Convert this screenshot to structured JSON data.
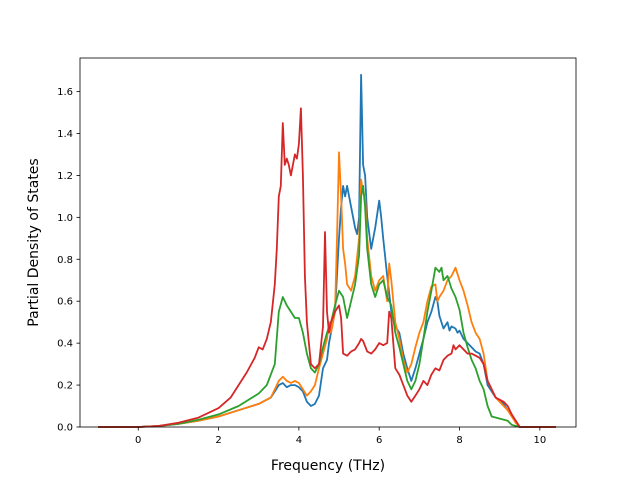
{
  "chart_data": {
    "type": "line",
    "title": "",
    "xlabel": "Frequency (THz)",
    "ylabel": "Partial Density of States",
    "xlim": [
      -1.45,
      10.9
    ],
    "ylim": [
      0.0,
      1.76
    ],
    "xticks": [
      0,
      2,
      4,
      6,
      8,
      10
    ],
    "yticks": [
      0.0,
      0.2,
      0.4,
      0.6,
      0.8,
      1.0,
      1.2,
      1.4,
      1.6
    ],
    "xtick_labels": [
      "0",
      "2",
      "4",
      "6",
      "8",
      "10"
    ],
    "ytick_labels": [
      "0.0",
      "0.2",
      "0.4",
      "0.6",
      "0.8",
      "1.0",
      "1.2",
      "1.4",
      "1.6"
    ],
    "grid": false,
    "legend": "none",
    "series": [
      {
        "color": "#1f77b4",
        "points": [
          [
            -1.0,
            0.0
          ],
          [
            0.0,
            0.0
          ],
          [
            0.5,
            0.005
          ],
          [
            1.0,
            0.015
          ],
          [
            1.5,
            0.03
          ],
          [
            2.0,
            0.05
          ],
          [
            2.5,
            0.08
          ],
          [
            3.0,
            0.11
          ],
          [
            3.3,
            0.14
          ],
          [
            3.5,
            0.2
          ],
          [
            3.6,
            0.21
          ],
          [
            3.7,
            0.19
          ],
          [
            3.8,
            0.2
          ],
          [
            3.9,
            0.2
          ],
          [
            4.0,
            0.19
          ],
          [
            4.1,
            0.17
          ],
          [
            4.2,
            0.12
          ],
          [
            4.3,
            0.1
          ],
          [
            4.4,
            0.11
          ],
          [
            4.5,
            0.15
          ],
          [
            4.6,
            0.28
          ],
          [
            4.7,
            0.32
          ],
          [
            4.75,
            0.4
          ],
          [
            4.8,
            0.45
          ],
          [
            4.9,
            0.55
          ],
          [
            5.0,
            0.9
          ],
          [
            5.05,
            1.05
          ],
          [
            5.1,
            1.15
          ],
          [
            5.15,
            1.1
          ],
          [
            5.2,
            1.15
          ],
          [
            5.3,
            1.05
          ],
          [
            5.4,
            0.95
          ],
          [
            5.45,
            0.92
          ],
          [
            5.5,
            1.0
          ],
          [
            5.55,
            1.68
          ],
          [
            5.6,
            1.25
          ],
          [
            5.65,
            1.2
          ],
          [
            5.7,
            1.0
          ],
          [
            5.8,
            0.85
          ],
          [
            5.9,
            0.95
          ],
          [
            6.0,
            1.08
          ],
          [
            6.05,
            1.0
          ],
          [
            6.1,
            0.9
          ],
          [
            6.2,
            0.72
          ],
          [
            6.3,
            0.55
          ],
          [
            6.4,
            0.48
          ],
          [
            6.5,
            0.45
          ],
          [
            6.6,
            0.35
          ],
          [
            6.7,
            0.28
          ],
          [
            6.8,
            0.22
          ],
          [
            6.9,
            0.28
          ],
          [
            7.0,
            0.35
          ],
          [
            7.1,
            0.42
          ],
          [
            7.2,
            0.5
          ],
          [
            7.3,
            0.55
          ],
          [
            7.4,
            0.62
          ],
          [
            7.45,
            0.6
          ],
          [
            7.5,
            0.53
          ],
          [
            7.6,
            0.47
          ],
          [
            7.7,
            0.5
          ],
          [
            7.75,
            0.46
          ],
          [
            7.8,
            0.48
          ],
          [
            7.9,
            0.47
          ],
          [
            7.95,
            0.45
          ],
          [
            8.0,
            0.46
          ],
          [
            8.1,
            0.42
          ],
          [
            8.2,
            0.4
          ],
          [
            8.3,
            0.38
          ],
          [
            8.4,
            0.36
          ],
          [
            8.5,
            0.35
          ],
          [
            8.6,
            0.3
          ],
          [
            8.7,
            0.2
          ],
          [
            8.9,
            0.14
          ],
          [
            9.1,
            0.11
          ],
          [
            9.2,
            0.08
          ],
          [
            9.3,
            0.06
          ],
          [
            9.4,
            0.02
          ],
          [
            9.5,
            0.0
          ],
          [
            10.4,
            0.0
          ]
        ]
      },
      {
        "color": "#ff7f0e",
        "points": [
          [
            -1.0,
            0.0
          ],
          [
            0.0,
            0.0
          ],
          [
            0.5,
            0.005
          ],
          [
            1.0,
            0.015
          ],
          [
            1.5,
            0.03
          ],
          [
            2.0,
            0.05
          ],
          [
            2.5,
            0.08
          ],
          [
            3.0,
            0.11
          ],
          [
            3.3,
            0.14
          ],
          [
            3.5,
            0.22
          ],
          [
            3.6,
            0.24
          ],
          [
            3.7,
            0.22
          ],
          [
            3.8,
            0.21
          ],
          [
            3.9,
            0.22
          ],
          [
            4.0,
            0.21
          ],
          [
            4.1,
            0.18
          ],
          [
            4.2,
            0.15
          ],
          [
            4.3,
            0.17
          ],
          [
            4.4,
            0.2
          ],
          [
            4.5,
            0.28
          ],
          [
            4.6,
            0.35
          ],
          [
            4.7,
            0.42
          ],
          [
            4.75,
            0.5
          ],
          [
            4.8,
            0.45
          ],
          [
            4.9,
            0.55
          ],
          [
            4.95,
            0.9
          ],
          [
            5.0,
            1.31
          ],
          [
            5.05,
            1.1
          ],
          [
            5.1,
            0.85
          ],
          [
            5.15,
            0.78
          ],
          [
            5.2,
            0.68
          ],
          [
            5.3,
            0.65
          ],
          [
            5.4,
            0.72
          ],
          [
            5.5,
            0.9
          ],
          [
            5.55,
            1.18
          ],
          [
            5.6,
            1.12
          ],
          [
            5.65,
            1.1
          ],
          [
            5.7,
            0.9
          ],
          [
            5.8,
            0.72
          ],
          [
            5.9,
            0.65
          ],
          [
            6.0,
            0.7
          ],
          [
            6.1,
            0.72
          ],
          [
            6.2,
            0.6
          ],
          [
            6.25,
            0.78
          ],
          [
            6.3,
            0.7
          ],
          [
            6.4,
            0.5
          ],
          [
            6.5,
            0.42
          ],
          [
            6.6,
            0.32
          ],
          [
            6.7,
            0.26
          ],
          [
            6.8,
            0.3
          ],
          [
            6.9,
            0.38
          ],
          [
            7.0,
            0.45
          ],
          [
            7.1,
            0.5
          ],
          [
            7.2,
            0.6
          ],
          [
            7.3,
            0.67
          ],
          [
            7.4,
            0.68
          ],
          [
            7.45,
            0.6
          ],
          [
            7.5,
            0.62
          ],
          [
            7.6,
            0.65
          ],
          [
            7.7,
            0.7
          ],
          [
            7.8,
            0.72
          ],
          [
            7.9,
            0.76
          ],
          [
            8.0,
            0.7
          ],
          [
            8.1,
            0.65
          ],
          [
            8.2,
            0.58
          ],
          [
            8.3,
            0.5
          ],
          [
            8.4,
            0.45
          ],
          [
            8.5,
            0.42
          ],
          [
            8.6,
            0.35
          ],
          [
            8.7,
            0.22
          ],
          [
            8.9,
            0.14
          ],
          [
            9.1,
            0.1
          ],
          [
            9.2,
            0.08
          ],
          [
            9.3,
            0.05
          ],
          [
            9.4,
            0.02
          ],
          [
            9.5,
            0.0
          ],
          [
            10.4,
            0.0
          ]
        ]
      },
      {
        "color": "#2ca02c",
        "points": [
          [
            -1.0,
            0.0
          ],
          [
            0.0,
            0.0
          ],
          [
            0.5,
            0.005
          ],
          [
            1.0,
            0.015
          ],
          [
            1.5,
            0.035
          ],
          [
            2.0,
            0.06
          ],
          [
            2.5,
            0.1
          ],
          [
            3.0,
            0.16
          ],
          [
            3.2,
            0.2
          ],
          [
            3.4,
            0.3
          ],
          [
            3.5,
            0.55
          ],
          [
            3.6,
            0.62
          ],
          [
            3.7,
            0.58
          ],
          [
            3.8,
            0.55
          ],
          [
            3.9,
            0.52
          ],
          [
            4.0,
            0.52
          ],
          [
            4.1,
            0.45
          ],
          [
            4.2,
            0.35
          ],
          [
            4.3,
            0.28
          ],
          [
            4.4,
            0.26
          ],
          [
            4.5,
            0.3
          ],
          [
            4.6,
            0.38
          ],
          [
            4.7,
            0.45
          ],
          [
            4.8,
            0.5
          ],
          [
            4.9,
            0.58
          ],
          [
            5.0,
            0.65
          ],
          [
            5.1,
            0.62
          ],
          [
            5.2,
            0.52
          ],
          [
            5.3,
            0.6
          ],
          [
            5.4,
            0.68
          ],
          [
            5.5,
            0.82
          ],
          [
            5.55,
            1.1
          ],
          [
            5.6,
            1.15
          ],
          [
            5.65,
            1.05
          ],
          [
            5.7,
            0.85
          ],
          [
            5.8,
            0.68
          ],
          [
            5.9,
            0.62
          ],
          [
            6.0,
            0.68
          ],
          [
            6.1,
            0.7
          ],
          [
            6.2,
            0.62
          ],
          [
            6.3,
            0.58
          ],
          [
            6.4,
            0.45
          ],
          [
            6.5,
            0.38
          ],
          [
            6.6,
            0.3
          ],
          [
            6.7,
            0.22
          ],
          [
            6.8,
            0.18
          ],
          [
            6.9,
            0.22
          ],
          [
            7.0,
            0.3
          ],
          [
            7.1,
            0.42
          ],
          [
            7.2,
            0.55
          ],
          [
            7.3,
            0.65
          ],
          [
            7.4,
            0.76
          ],
          [
            7.5,
            0.74
          ],
          [
            7.55,
            0.76
          ],
          [
            7.6,
            0.7
          ],
          [
            7.7,
            0.72
          ],
          [
            7.8,
            0.66
          ],
          [
            7.9,
            0.62
          ],
          [
            8.0,
            0.56
          ],
          [
            8.1,
            0.45
          ],
          [
            8.2,
            0.38
          ],
          [
            8.3,
            0.32
          ],
          [
            8.4,
            0.28
          ],
          [
            8.5,
            0.22
          ],
          [
            8.6,
            0.18
          ],
          [
            8.7,
            0.1
          ],
          [
            8.8,
            0.05
          ],
          [
            9.0,
            0.04
          ],
          [
            9.2,
            0.03
          ],
          [
            9.3,
            0.01
          ],
          [
            9.5,
            0.0
          ],
          [
            10.4,
            0.0
          ]
        ]
      },
      {
        "color": "#d62728",
        "points": [
          [
            -1.0,
            0.0
          ],
          [
            0.0,
            0.0
          ],
          [
            0.5,
            0.005
          ],
          [
            1.0,
            0.02
          ],
          [
            1.5,
            0.045
          ],
          [
            2.0,
            0.09
          ],
          [
            2.3,
            0.14
          ],
          [
            2.5,
            0.2
          ],
          [
            2.7,
            0.26
          ],
          [
            2.9,
            0.33
          ],
          [
            3.0,
            0.38
          ],
          [
            3.1,
            0.37
          ],
          [
            3.2,
            0.42
          ],
          [
            3.3,
            0.5
          ],
          [
            3.4,
            0.68
          ],
          [
            3.45,
            0.85
          ],
          [
            3.5,
            1.1
          ],
          [
            3.55,
            1.15
          ],
          [
            3.6,
            1.45
          ],
          [
            3.65,
            1.25
          ],
          [
            3.7,
            1.28
          ],
          [
            3.75,
            1.25
          ],
          [
            3.8,
            1.2
          ],
          [
            3.85,
            1.25
          ],
          [
            3.9,
            1.3
          ],
          [
            3.95,
            1.28
          ],
          [
            4.0,
            1.35
          ],
          [
            4.05,
            1.52
          ],
          [
            4.1,
            1.2
          ],
          [
            4.15,
            0.72
          ],
          [
            4.2,
            0.5
          ],
          [
            4.3,
            0.3
          ],
          [
            4.4,
            0.28
          ],
          [
            4.5,
            0.3
          ],
          [
            4.6,
            0.48
          ],
          [
            4.65,
            0.93
          ],
          [
            4.7,
            0.55
          ],
          [
            4.75,
            0.45
          ],
          [
            4.8,
            0.5
          ],
          [
            4.9,
            0.55
          ],
          [
            5.0,
            0.58
          ],
          [
            5.05,
            0.52
          ],
          [
            5.1,
            0.35
          ],
          [
            5.2,
            0.34
          ],
          [
            5.3,
            0.36
          ],
          [
            5.4,
            0.37
          ],
          [
            5.5,
            0.4
          ],
          [
            5.55,
            0.42
          ],
          [
            5.6,
            0.41
          ],
          [
            5.7,
            0.36
          ],
          [
            5.8,
            0.35
          ],
          [
            5.9,
            0.37
          ],
          [
            6.0,
            0.4
          ],
          [
            6.1,
            0.39
          ],
          [
            6.2,
            0.4
          ],
          [
            6.25,
            0.55
          ],
          [
            6.3,
            0.52
          ],
          [
            6.4,
            0.28
          ],
          [
            6.5,
            0.25
          ],
          [
            6.6,
            0.2
          ],
          [
            6.7,
            0.15
          ],
          [
            6.8,
            0.12
          ],
          [
            6.9,
            0.15
          ],
          [
            7.0,
            0.18
          ],
          [
            7.1,
            0.22
          ],
          [
            7.2,
            0.2
          ],
          [
            7.3,
            0.25
          ],
          [
            7.4,
            0.28
          ],
          [
            7.5,
            0.27
          ],
          [
            7.6,
            0.32
          ],
          [
            7.7,
            0.34
          ],
          [
            7.8,
            0.35
          ],
          [
            7.85,
            0.39
          ],
          [
            7.9,
            0.37
          ],
          [
            8.0,
            0.39
          ],
          [
            8.1,
            0.37
          ],
          [
            8.2,
            0.35
          ],
          [
            8.3,
            0.35
          ],
          [
            8.4,
            0.34
          ],
          [
            8.5,
            0.33
          ],
          [
            8.6,
            0.3
          ],
          [
            8.7,
            0.22
          ],
          [
            8.9,
            0.14
          ],
          [
            9.1,
            0.12
          ],
          [
            9.2,
            0.1
          ],
          [
            9.3,
            0.06
          ],
          [
            9.4,
            0.03
          ],
          [
            9.5,
            0.0
          ],
          [
            10.4,
            0.0
          ]
        ]
      }
    ]
  }
}
